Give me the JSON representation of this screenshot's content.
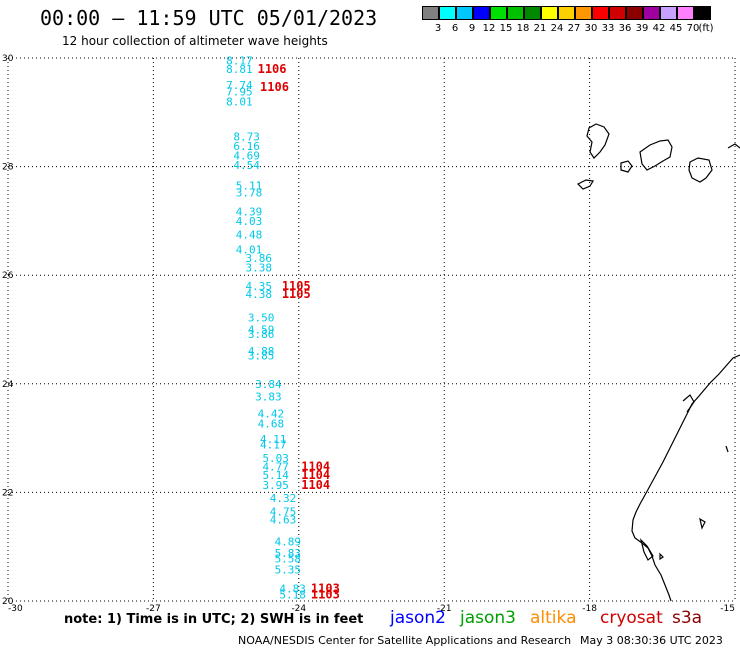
{
  "title": "00:00 — 11:59 UTC 05/01/2023",
  "subtitle": "12 hour collection of altimeter wave heights",
  "colorbar": {
    "colors": [
      "#808080",
      "#00ffff",
      "#00c8ff",
      "#0000ff",
      "#00e000",
      "#00c000",
      "#008800",
      "#ffff00",
      "#ffd000",
      "#ff9800",
      "#ff0000",
      "#d00000",
      "#8b0000",
      "#a000a0",
      "#c8a0ff",
      "#ff80ff",
      "#000000"
    ],
    "labels": [
      "3",
      "6",
      "9",
      "12",
      "15",
      "18",
      "21",
      "24",
      "27",
      "30",
      "33",
      "36",
      "39",
      "42",
      "45",
      "70",
      "(ft)"
    ]
  },
  "axes": {
    "lat_labels": [
      "30",
      "28",
      "26",
      "24",
      "22",
      "20"
    ],
    "lon_labels": [
      "-30",
      "-27",
      "-24",
      "-21",
      "-18",
      "-15"
    ]
  },
  "tracks": {
    "cyan_values": [
      {
        "v": "8.17",
        "lat": 29.95,
        "lon": -25.5
      },
      {
        "v": "8.81",
        "lat": 29.8,
        "lon": -25.5
      },
      {
        "v": "7.74",
        "lat": 29.5,
        "lon": -25.5
      },
      {
        "v": "7.95",
        "lat": 29.38,
        "lon": -25.5
      },
      {
        "v": "8.01",
        "lat": 29.2,
        "lon": -25.5
      },
      {
        "v": "8.73",
        "lat": 28.55,
        "lon": -25.35
      },
      {
        "v": "6.16",
        "lat": 28.38,
        "lon": -25.35
      },
      {
        "v": "4.69",
        "lat": 28.2,
        "lon": -25.35
      },
      {
        "v": "4.54",
        "lat": 28.03,
        "lon": -25.35
      },
      {
        "v": "5.11",
        "lat": 27.65,
        "lon": -25.3
      },
      {
        "v": "3.78",
        "lat": 27.52,
        "lon": -25.3
      },
      {
        "v": "4.39",
        "lat": 27.17,
        "lon": -25.3
      },
      {
        "v": "4.03",
        "lat": 27.0,
        "lon": -25.3
      },
      {
        "v": "4.48",
        "lat": 26.75,
        "lon": -25.3
      },
      {
        "v": "4.01",
        "lat": 26.47,
        "lon": -25.3
      },
      {
        "v": "3.86",
        "lat": 26.32,
        "lon": -25.1
      },
      {
        "v": "3.38",
        "lat": 26.14,
        "lon": -25.1
      },
      {
        "v": "4.35",
        "lat": 25.8,
        "lon": -25.1
      },
      {
        "v": "4.38",
        "lat": 25.65,
        "lon": -25.1
      },
      {
        "v": "3.50",
        "lat": 25.22,
        "lon": -25.05
      },
      {
        "v": "4.59",
        "lat": 25.0,
        "lon": -25.05
      },
      {
        "v": "3.86",
        "lat": 24.92,
        "lon": -25.05
      },
      {
        "v": "4.88",
        "lat": 24.6,
        "lon": -25.05
      },
      {
        "v": "3.85",
        "lat": 24.52,
        "lon": -25.05
      },
      {
        "v": "3.84",
        "lat": 24.0,
        "lon": -24.9
      },
      {
        "v": "3.83",
        "lat": 23.77,
        "lon": -24.9
      },
      {
        "v": "4.42",
        "lat": 23.45,
        "lon": -24.85
      },
      {
        "v": "4.68",
        "lat": 23.27,
        "lon": -24.85
      },
      {
        "v": "4.11",
        "lat": 22.98,
        "lon": -24.8
      },
      {
        "v": "4.17",
        "lat": 22.88,
        "lon": -24.8
      },
      {
        "v": "5.03",
        "lat": 22.63,
        "lon": -24.75
      },
      {
        "v": "4.77",
        "lat": 22.48,
        "lon": -24.75
      },
      {
        "v": "5.14",
        "lat": 22.32,
        "lon": -24.75
      },
      {
        "v": "3.95",
        "lat": 22.14,
        "lon": -24.75
      },
      {
        "v": "4.32",
        "lat": 21.9,
        "lon": -24.6
      },
      {
        "v": "4.75",
        "lat": 21.65,
        "lon": -24.6
      },
      {
        "v": "4.63",
        "lat": 21.5,
        "lon": -24.6
      },
      {
        "v": "4.89",
        "lat": 21.1,
        "lon": -24.5
      },
      {
        "v": "5.83",
        "lat": 20.88,
        "lon": -24.5
      },
      {
        "v": "5.58",
        "lat": 20.78,
        "lon": -24.5
      },
      {
        "v": "5.35",
        "lat": 20.58,
        "lon": -24.5
      },
      {
        "v": "4.83",
        "lat": 20.23,
        "lon": -24.4
      },
      {
        "v": "5.18",
        "lat": 20.12,
        "lon": -24.4
      }
    ],
    "red_ids": [
      {
        "v": "1106",
        "lat": 29.8,
        "lon": -24.85
      },
      {
        "v": "1106",
        "lat": 29.47,
        "lon": -24.8
      },
      {
        "v": "1105",
        "lat": 25.8,
        "lon": -24.35
      },
      {
        "v": "1105",
        "lat": 25.65,
        "lon": -24.35
      },
      {
        "v": "1104",
        "lat": 22.48,
        "lon": -23.95
      },
      {
        "v": "1104",
        "lat": 22.32,
        "lon": -23.95
      },
      {
        "v": "1104",
        "lat": 22.14,
        "lon": -23.95
      },
      {
        "v": "1103",
        "lat": 20.23,
        "lon": -23.75
      },
      {
        "v": "1103",
        "lat": 20.12,
        "lon": -23.75
      }
    ]
  },
  "note": "note: 1) Time is in UTC; 2) SWH is in feet",
  "legend": [
    {
      "label": "jason2",
      "color": "#0000ff"
    },
    {
      "label": "jason3",
      "color": "#00a000"
    },
    {
      "label": "altika",
      "color": "#ff8c00"
    },
    {
      "label": "cryosat",
      "color": "#d00000"
    },
    {
      "label": "s3a",
      "color": "#8b0000"
    }
  ],
  "credit": "NOAA/NESDIS Center for Satellite Applications and Research",
  "timestamp": "May  3 08:30:36 UTC 2023"
}
